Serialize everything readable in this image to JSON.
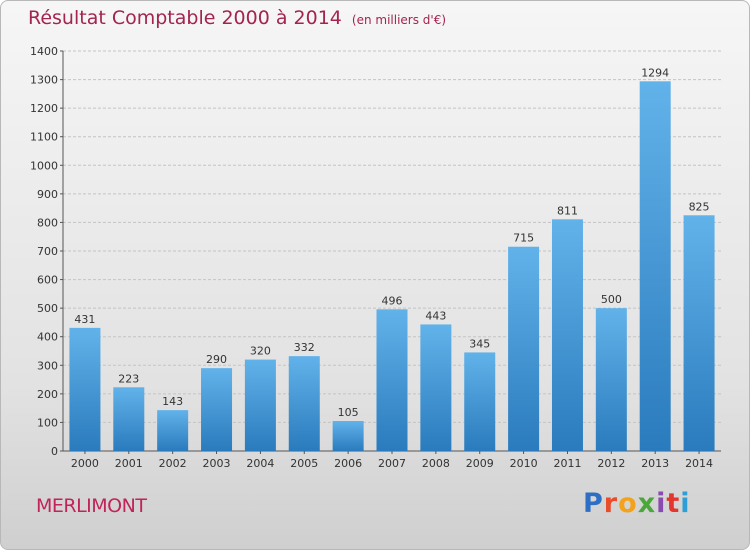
{
  "title": "Résultat Comptable 2000 à 2014",
  "subtitle": "(en milliers d'€)",
  "town": "MERLIMONT",
  "logo": {
    "text": "Proxiti",
    "colors": [
      "#2e6fc6",
      "#e84c2b",
      "#f3a21b",
      "#4aa83a",
      "#8a4bb0",
      "#e2362f",
      "#2e9fd6"
    ]
  },
  "colors": {
    "bar_top": "#62b2ea",
    "bar_bottom": "#2a7bbd",
    "title": "#a3244f"
  },
  "chart_data": {
    "type": "bar",
    "categories": [
      "2000",
      "2001",
      "2002",
      "2003",
      "2004",
      "2005",
      "2006",
      "2007",
      "2008",
      "2009",
      "2010",
      "2011",
      "2012",
      "2013",
      "2014"
    ],
    "values": [
      431,
      223,
      143,
      290,
      320,
      332,
      105,
      496,
      443,
      345,
      715,
      811,
      500,
      1294,
      825
    ],
    "ylim": [
      0,
      1400
    ],
    "yticks": [
      0,
      100,
      200,
      300,
      400,
      500,
      600,
      700,
      800,
      900,
      1000,
      1100,
      1200,
      1300,
      1400
    ],
    "grid": true,
    "data_labels": true
  }
}
